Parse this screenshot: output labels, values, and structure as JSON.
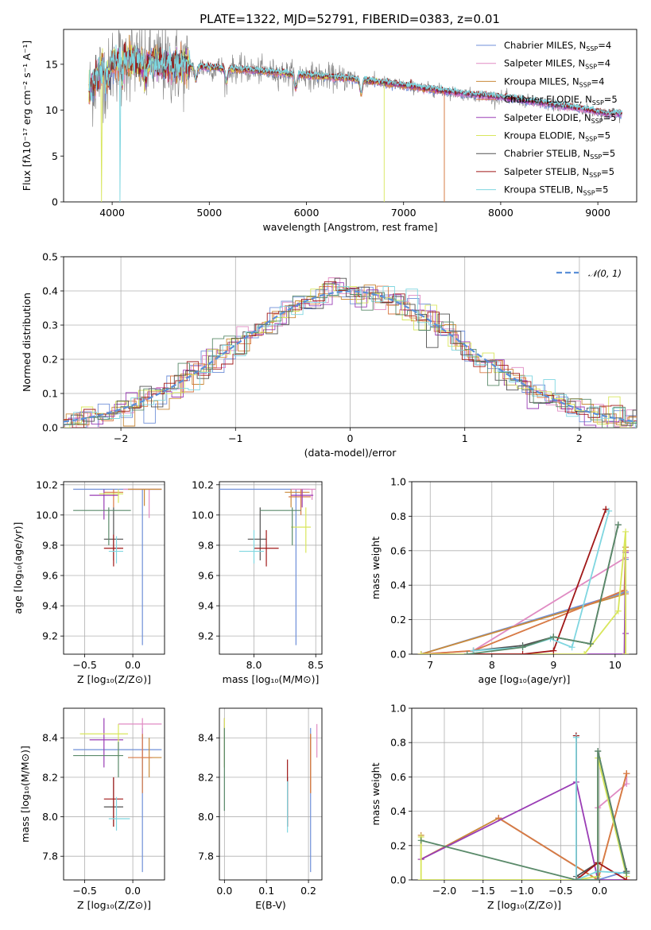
{
  "figure": {
    "title": "PLATE=1322, MJD=52791, FIBERID=0383, z=0.01"
  },
  "colors": {
    "Chabrier MILES": "#6f8fd8",
    "Salpeter MILES": "#e08bc3",
    "Kroupa MILES": "#c98a3a",
    "Chabrier ELODIE": "#d87a45",
    "Salpeter ELODIE": "#9a3db5",
    "Kroupa ELODIE": "#d8e65c",
    "Chabrier STELIB": "#505050",
    "Salpeter STELIB": "#a01818",
    "Kroupa STELIB": "#7fd6e0",
    "data": "#7a7a7a",
    "extra": "#5a8a6a"
  },
  "chart_data": [
    {
      "id": "spectrum",
      "type": "line",
      "title": "PLATE=1322, MJD=52791, FIBERID=0383, z=0.01",
      "xlabel": "wavelength [Angstrom, rest frame]",
      "ylabel": "Flux [fλ10⁻¹⁷ erg cm⁻² s⁻¹ A⁻¹]",
      "xlim": [
        3500,
        9400
      ],
      "ylim": [
        0,
        18.8
      ],
      "xticks": [
        4000,
        5000,
        6000,
        7000,
        8000,
        9000
      ],
      "yticks": [
        0,
        5,
        10,
        15
      ],
      "legend_position": "top-right",
      "legend": [
        {
          "label": "Chabrier MILES, N",
          "sub": "SSP",
          "tail": "=4"
        },
        {
          "label": "Salpeter MILES, N",
          "sub": "SSP",
          "tail": "=4"
        },
        {
          "label": "Kroupa MILES, N",
          "sub": "SSP",
          "tail": "=4"
        },
        {
          "label": "Chabrier ELODIE, N",
          "sub": "SSP",
          "tail": "=5"
        },
        {
          "label": "Salpeter ELODIE, N",
          "sub": "SSP",
          "tail": "=5"
        },
        {
          "label": "Kroupa ELODIE, N",
          "sub": "SSP",
          "tail": "=5"
        },
        {
          "label": "Chabrier STELIB, N",
          "sub": "SSP",
          "tail": "=5"
        },
        {
          "label": "Salpeter STELIB, N",
          "sub": "SSP",
          "tail": "=5"
        },
        {
          "label": "Kroupa STELIB, N",
          "sub": "SSP",
          "tail": "=5"
        }
      ],
      "continuum_x": [
        3760,
        3900,
        4100,
        4300,
        4500,
        4800,
        5200,
        5600,
        6000,
        6400,
        6800,
        7200,
        7600,
        8000,
        8400,
        8800,
        9100
      ],
      "continuum_y": [
        12.0,
        14.5,
        15.6,
        15.2,
        15.0,
        14.8,
        14.5,
        14.2,
        13.8,
        13.5,
        13.0,
        12.4,
        11.8,
        11.4,
        10.8,
        10.2,
        9.6
      ],
      "cutoffs": {
        "Kroupa ELODIE": 6800,
        "Chabrier ELODIE": 7420,
        "Kroupa MILES": 7420
      }
    },
    {
      "id": "residuals",
      "type": "histogram",
      "xlabel": "(data-model)/error",
      "ylabel": "Normed distribution",
      "xlim": [
        -2.5,
        2.5
      ],
      "ylim": [
        0,
        0.5
      ],
      "xticks": [
        -2,
        -1,
        0,
        1,
        2
      ],
      "yticks": [
        0.0,
        0.1,
        0.2,
        0.3,
        0.4,
        0.5
      ],
      "legend": "𝒩(0, 1)",
      "legend_position": "top-right",
      "bin_width": 0.1
    },
    {
      "id": "age-vs-Z",
      "type": "errorbar",
      "xlabel": "Z [log₁₀(Z/Z⊙)]",
      "ylabel": "age  [log₁₀(age/yr)]",
      "xlim": [
        -0.72,
        0.33
      ],
      "ylim": [
        9.08,
        10.22
      ],
      "xticks": [
        -0.5,
        0.0
      ],
      "yticks": [
        9.2,
        9.4,
        9.6,
        9.8,
        10.0,
        10.2
      ],
      "points": [
        {
          "m": "Chabrier MILES",
          "x": 0.1,
          "xl": -0.62,
          "xh": 0.3,
          "y": 10.17,
          "yl": 9.14,
          "yh": 10.17
        },
        {
          "m": "Salpeter MILES",
          "x": 0.17,
          "xl": -0.1,
          "xh": 0.3,
          "y": 10.17,
          "yl": 9.98,
          "yh": 10.17
        },
        {
          "m": "Kroupa MILES",
          "x": 0.12,
          "xl": -0.05,
          "xh": 0.3,
          "y": 10.17,
          "yl": 10.06,
          "yh": 10.17
        },
        {
          "m": "Chabrier ELODIE",
          "x": -0.2,
          "xl": -0.3,
          "xh": -0.1,
          "y": 10.15,
          "yl": 10.05,
          "yh": 10.17
        },
        {
          "m": "Salpeter ELODIE",
          "x": -0.3,
          "xl": -0.45,
          "xh": -0.15,
          "y": 10.13,
          "yl": 9.97,
          "yh": 10.17
        },
        {
          "m": "Kroupa ELODIE",
          "x": -0.15,
          "xl": -0.35,
          "xh": -0.1,
          "y": 10.14,
          "yl": 10.08,
          "yh": 10.17
        },
        {
          "m": "Chabrier STELIB",
          "x": -0.2,
          "xl": -0.3,
          "xh": -0.1,
          "y": 9.84,
          "yl": 9.7,
          "yh": 10.05
        },
        {
          "m": "Salpeter STELIB",
          "x": -0.2,
          "xl": -0.3,
          "xh": -0.1,
          "y": 9.78,
          "yl": 9.66,
          "yh": 9.87
        },
        {
          "m": "Kroupa STELIB",
          "x": -0.17,
          "xl": -0.25,
          "xh": -0.1,
          "y": 9.76,
          "yl": 9.68,
          "yh": 9.86
        },
        {
          "m": "extra",
          "x": -0.25,
          "xl": -0.62,
          "xh": -0.02,
          "y": 10.03,
          "yl": 9.8,
          "yh": 10.05
        }
      ]
    },
    {
      "id": "age-vs-mass",
      "type": "errorbar",
      "xlabel": "mass [log₁₀(M/M⊙)]",
      "ylabel": "",
      "xlim": [
        7.72,
        8.55
      ],
      "ylim": [
        9.08,
        10.22
      ],
      "xticks": [
        8.0,
        8.5
      ],
      "yticks": [
        9.2,
        9.4,
        9.6,
        9.8,
        10.0,
        10.2
      ],
      "points": [
        {
          "m": "Chabrier MILES",
          "x": 8.34,
          "xl": 7.72,
          "xh": 8.45,
          "y": 10.17,
          "yl": 9.14,
          "yh": 10.17
        },
        {
          "m": "Salpeter MILES",
          "x": 8.47,
          "xl": 8.3,
          "xh": 8.5,
          "y": 10.17,
          "yl": 10.1,
          "yh": 10.17
        },
        {
          "m": "Kroupa MILES",
          "x": 8.3,
          "xl": 8.25,
          "xh": 8.45,
          "y": 10.15,
          "yl": 10.05,
          "yh": 10.17
        },
        {
          "m": "Chabrier ELODIE",
          "x": 8.38,
          "xl": 8.28,
          "xh": 8.46,
          "y": 10.12,
          "yl": 10.0,
          "yh": 10.17
        },
        {
          "m": "Salpeter ELODIE",
          "x": 8.39,
          "xl": 8.3,
          "xh": 8.48,
          "y": 10.13,
          "yl": 10.05,
          "yh": 10.17
        },
        {
          "m": "Kroupa ELODIE",
          "x": 8.42,
          "xl": 8.3,
          "xh": 8.46,
          "y": 9.92,
          "yl": 9.75,
          "yh": 10.05
        },
        {
          "m": "Chabrier STELIB",
          "x": 8.05,
          "xl": 7.95,
          "xh": 8.1,
          "y": 9.84,
          "yl": 9.7,
          "yh": 10.05
        },
        {
          "m": "Salpeter STELIB",
          "x": 8.1,
          "xl": 8.0,
          "xh": 8.2,
          "y": 9.78,
          "yl": 9.66,
          "yh": 9.9
        },
        {
          "m": "Kroupa STELIB",
          "x": 8.0,
          "xl": 7.88,
          "xh": 8.08,
          "y": 9.76,
          "yl": 9.68,
          "yh": 9.9
        },
        {
          "m": "extra",
          "x": 8.31,
          "xl": 8.05,
          "xh": 8.38,
          "y": 10.03,
          "yl": 9.8,
          "yh": 10.05
        }
      ]
    },
    {
      "id": "weight-vs-age",
      "type": "line",
      "xlabel": "age  [log₁₀(age/yr)]",
      "ylabel": "mass weight",
      "xlim": [
        6.7,
        10.35
      ],
      "ylim": [
        0,
        1.0
      ],
      "xticks": [
        7,
        8,
        9,
        10
      ],
      "yticks": [
        0.0,
        0.2,
        0.4,
        0.6,
        0.8,
        1.0
      ],
      "series": [
        {
          "m": "Chabrier MILES",
          "x": [
            6.85,
            10.17,
            10.17,
            10.17,
            10.17
          ],
          "y": [
            0.0,
            0.36,
            0.55,
            0.62,
            0.0
          ]
        },
        {
          "m": "Salpeter MILES",
          "x": [
            6.85,
            7.7,
            10.17,
            10.17,
            10.17
          ],
          "y": [
            0.0,
            0.02,
            0.56,
            0.62,
            0.0
          ]
        },
        {
          "m": "Kroupa MILES",
          "x": [
            6.85,
            10.17,
            10.17,
            10.17
          ],
          "y": [
            0.0,
            0.35,
            0.62,
            0.0
          ]
        },
        {
          "m": "Chabrier ELODIE",
          "x": [
            6.85,
            7.7,
            10.15,
            10.17,
            10.17
          ],
          "y": [
            0.0,
            0.02,
            0.37,
            0.6,
            0.0
          ]
        },
        {
          "m": "Salpeter ELODIE",
          "x": [
            6.85,
            10.15,
            10.17,
            10.17,
            10.17
          ],
          "y": [
            0.0,
            0.0,
            0.59,
            0.12,
            0.0
          ]
        },
        {
          "m": "Kroupa ELODIE",
          "x": [
            6.85,
            9.5,
            10.05,
            10.17,
            10.17
          ],
          "y": [
            0.0,
            0.0,
            0.25,
            0.71,
            0.0
          ]
        },
        {
          "m": "Chabrier STELIB",
          "x": [
            7.7,
            8.5,
            9.0,
            9.6,
            10.05
          ],
          "y": [
            0.02,
            0.05,
            0.1,
            0.06,
            0.75
          ]
        },
        {
          "m": "Salpeter STELIB",
          "x": [
            7.7,
            8.5,
            9.0,
            9.85,
            9.85
          ],
          "y": [
            0.0,
            0.0,
            0.02,
            0.84,
            0.84
          ]
        },
        {
          "m": "Kroupa STELIB",
          "x": [
            7.7,
            8.5,
            8.95,
            9.3,
            9.9
          ],
          "y": [
            0.02,
            0.04,
            0.09,
            0.04,
            0.83
          ]
        },
        {
          "m": "extra",
          "x": [
            7.6,
            8.5,
            9.0,
            9.6,
            10.05
          ],
          "y": [
            0.0,
            0.04,
            0.1,
            0.06,
            0.75
          ]
        }
      ]
    },
    {
      "id": "mass-vs-Z",
      "type": "errorbar",
      "xlabel": "Z [log₁₀(Z/Z⊙)]",
      "ylabel": "mass [log₁₀(M/M⊙)]",
      "xlim": [
        -0.72,
        0.33
      ],
      "ylim": [
        7.68,
        8.55
      ],
      "xticks": [
        -0.5,
        0.0
      ],
      "yticks": [
        7.8,
        8.0,
        8.2,
        8.4
      ],
      "points": [
        {
          "m": "Chabrier MILES",
          "x": 0.1,
          "xl": -0.62,
          "xh": 0.3,
          "y": 8.34,
          "yl": 7.72,
          "yh": 8.45
        },
        {
          "m": "Salpeter MILES",
          "x": 0.1,
          "xl": -0.15,
          "xh": 0.3,
          "y": 8.47,
          "yl": 8.3,
          "yh": 8.5
        },
        {
          "m": "Kroupa MILES",
          "x": 0.17,
          "xl": 0.1,
          "xh": 0.3,
          "y": 8.3,
          "yl": 8.2,
          "yh": 8.4
        },
        {
          "m": "Chabrier ELODIE",
          "x": 0.1,
          "xl": -0.05,
          "xh": 0.2,
          "y": 8.3,
          "yl": 8.12,
          "yh": 8.42
        },
        {
          "m": "Salpeter ELODIE",
          "x": -0.3,
          "xl": -0.45,
          "xh": -0.1,
          "y": 8.39,
          "yl": 8.25,
          "yh": 8.5
        },
        {
          "m": "Kroupa ELODIE",
          "x": -0.15,
          "xl": -0.55,
          "xh": -0.05,
          "y": 8.42,
          "yl": 8.3,
          "yh": 8.47
        },
        {
          "m": "Chabrier STELIB",
          "x": -0.2,
          "xl": -0.3,
          "xh": -0.1,
          "y": 8.05,
          "yl": 7.95,
          "yh": 8.2
        },
        {
          "m": "Salpeter STELIB",
          "x": -0.2,
          "xl": -0.3,
          "xh": -0.1,
          "y": 8.09,
          "yl": 7.95,
          "yh": 8.2
        },
        {
          "m": "Kroupa STELIB",
          "x": -0.17,
          "xl": -0.25,
          "xh": -0.03,
          "y": 7.99,
          "yl": 7.93,
          "yh": 8.1
        },
        {
          "m": "extra",
          "x": -0.15,
          "xl": -0.62,
          "xh": -0.1,
          "y": 8.31,
          "yl": 8.2,
          "yh": 8.38
        }
      ]
    },
    {
      "id": "mass-vs-ebv",
      "type": "errorbar",
      "xlabel": "E(B-V)",
      "ylabel": "",
      "xlim": [
        -0.012,
        0.232
      ],
      "ylim": [
        7.68,
        8.55
      ],
      "xticks": [
        0.0,
        0.1,
        0.2
      ],
      "yticks": [
        7.8,
        8.0,
        8.2,
        8.4
      ],
      "points": [
        {
          "m": "Chabrier MILES",
          "x": 0.205,
          "y": 8.34,
          "yl": 7.72,
          "yh": 8.45
        },
        {
          "m": "Salpeter MILES",
          "x": 0.22,
          "y": 8.47,
          "yl": 8.3,
          "yh": 8.47
        },
        {
          "m": "Kroupa MILES",
          "x": 0.205,
          "y": 8.3,
          "yl": 8.12,
          "yh": 8.42
        },
        {
          "m": "Chabrier ELODIE",
          "x": 0.205,
          "y": 8.3,
          "yl": 8.12,
          "yh": 8.42
        },
        {
          "m": "Salpeter ELODIE",
          "x": 0.0,
          "y": 8.39,
          "yl": 8.25,
          "yh": 8.5
        },
        {
          "m": "Kroupa ELODIE",
          "x": 0.0,
          "y": 8.42,
          "yl": 8.25,
          "yh": 8.5
        },
        {
          "m": "Chabrier STELIB",
          "x": 0.15,
          "y": 8.05,
          "yl": 7.95,
          "yh": 8.2
        },
        {
          "m": "Salpeter STELIB",
          "x": 0.15,
          "y": 8.09,
          "yl": 7.95,
          "yh": 8.29
        },
        {
          "m": "Kroupa STELIB",
          "x": 0.15,
          "y": 7.99,
          "yl": 7.92,
          "yh": 8.18
        },
        {
          "m": "extra",
          "x": 0.0,
          "y": 8.31,
          "yl": 8.03,
          "yh": 8.45
        }
      ]
    },
    {
      "id": "weight-vs-Z",
      "type": "line",
      "xlabel": "Z [log₁₀(Z/Z⊙)]",
      "ylabel": "mass weight",
      "xlim": [
        -2.42,
        0.48
      ],
      "ylim": [
        0,
        1.0
      ],
      "xticks": [
        -2.0,
        -1.5,
        -1.0,
        -0.5,
        0.0
      ],
      "yticks": [
        0.0,
        0.2,
        0.4,
        0.6,
        0.8,
        1.0
      ],
      "series": [
        {
          "m": "Chabrier MILES",
          "x": [
            -1.3,
            -0.02,
            0.35,
            0.35
          ],
          "y": [
            0.36,
            0.0,
            0.05,
            0.04
          ]
        },
        {
          "m": "Salpeter MILES",
          "x": [
            -0.02,
            0.35,
            0.35
          ],
          "y": [
            0.42,
            0.56,
            0.62
          ]
        },
        {
          "m": "Kroupa MILES",
          "x": [
            -2.3,
            -2.3,
            -1.3,
            -0.02,
            0.35,
            0.35
          ],
          "y": [
            0.26,
            0.12,
            0.36,
            0.0,
            0.62,
            0.62
          ]
        },
        {
          "m": "Chabrier ELODIE",
          "x": [
            -1.3,
            -0.02,
            0.35,
            0.35
          ],
          "y": [
            0.36,
            0.0,
            0.62,
            0.62
          ]
        },
        {
          "m": "Salpeter ELODIE",
          "x": [
            -2.3,
            -0.3,
            -0.02,
            0.35
          ],
          "y": [
            0.12,
            0.57,
            0.0,
            0.0
          ]
        },
        {
          "m": "Kroupa ELODIE",
          "x": [
            -2.3,
            -2.3,
            -0.3,
            -0.02,
            -0.02,
            0.35
          ],
          "y": [
            0.25,
            0.0,
            0.0,
            0.02,
            0.71,
            0.02
          ]
        },
        {
          "m": "Chabrier STELIB",
          "x": [
            -0.3,
            -0.3,
            -0.02,
            -0.02,
            0.35
          ],
          "y": [
            0.84,
            0.02,
            0.1,
            0.75,
            0.05
          ]
        },
        {
          "m": "Salpeter STELIB",
          "x": [
            -0.3,
            -0.3,
            -0.02,
            0.35
          ],
          "y": [
            0.84,
            0.0,
            0.1,
            0.0
          ]
        },
        {
          "m": "Kroupa STELIB",
          "x": [
            -0.3,
            -0.3,
            -0.02,
            0.35
          ],
          "y": [
            0.83,
            0.0,
            0.05,
            0.04
          ]
        },
        {
          "m": "extra",
          "x": [
            -2.3,
            -0.3,
            -0.02,
            -0.02,
            0.35
          ],
          "y": [
            0.23,
            0.0,
            0.0,
            0.75,
            0.04
          ]
        }
      ]
    }
  ]
}
